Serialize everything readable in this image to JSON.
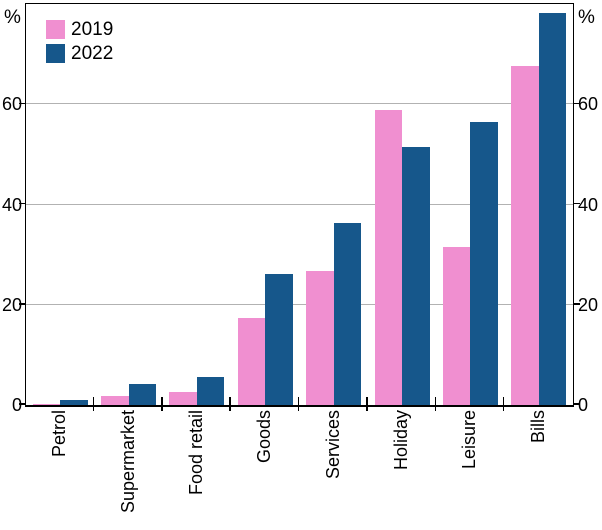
{
  "chart": {
    "legend": {
      "items": [
        {
          "label": "2019",
          "color": "#F08FD0"
        },
        {
          "label": "2022",
          "color": "#16578B"
        }
      ]
    }
  },
  "chart_data": {
    "type": "bar",
    "subtype": "grouped-vertical",
    "title": "",
    "xlabel": "",
    "ylabel_left": "%",
    "ylabel_right": "%",
    "percent_symbol": "%",
    "categories": [
      "Petrol",
      "Supermarket",
      "Food retail",
      "Goods",
      "Services",
      "Holiday",
      "Leisure",
      "Bills"
    ],
    "series": [
      {
        "name": "2019",
        "color": "#F08FD0",
        "values": [
          0.3,
          1.8,
          2.6,
          17.3,
          26.7,
          58.8,
          31.6,
          67.6
        ]
      },
      {
        "name": "2022",
        "color": "#16578B",
        "values": [
          1.0,
          4.2,
          5.6,
          26.1,
          36.3,
          51.5,
          56.4,
          78.2
        ]
      }
    ],
    "yticks": [
      0,
      20,
      40,
      60
    ],
    "ylim": [
      0,
      80
    ],
    "grid": true,
    "gridline_color": "#b2b2b2",
    "legend_position": "top-left",
    "tick_labels_both_sides": true
  }
}
